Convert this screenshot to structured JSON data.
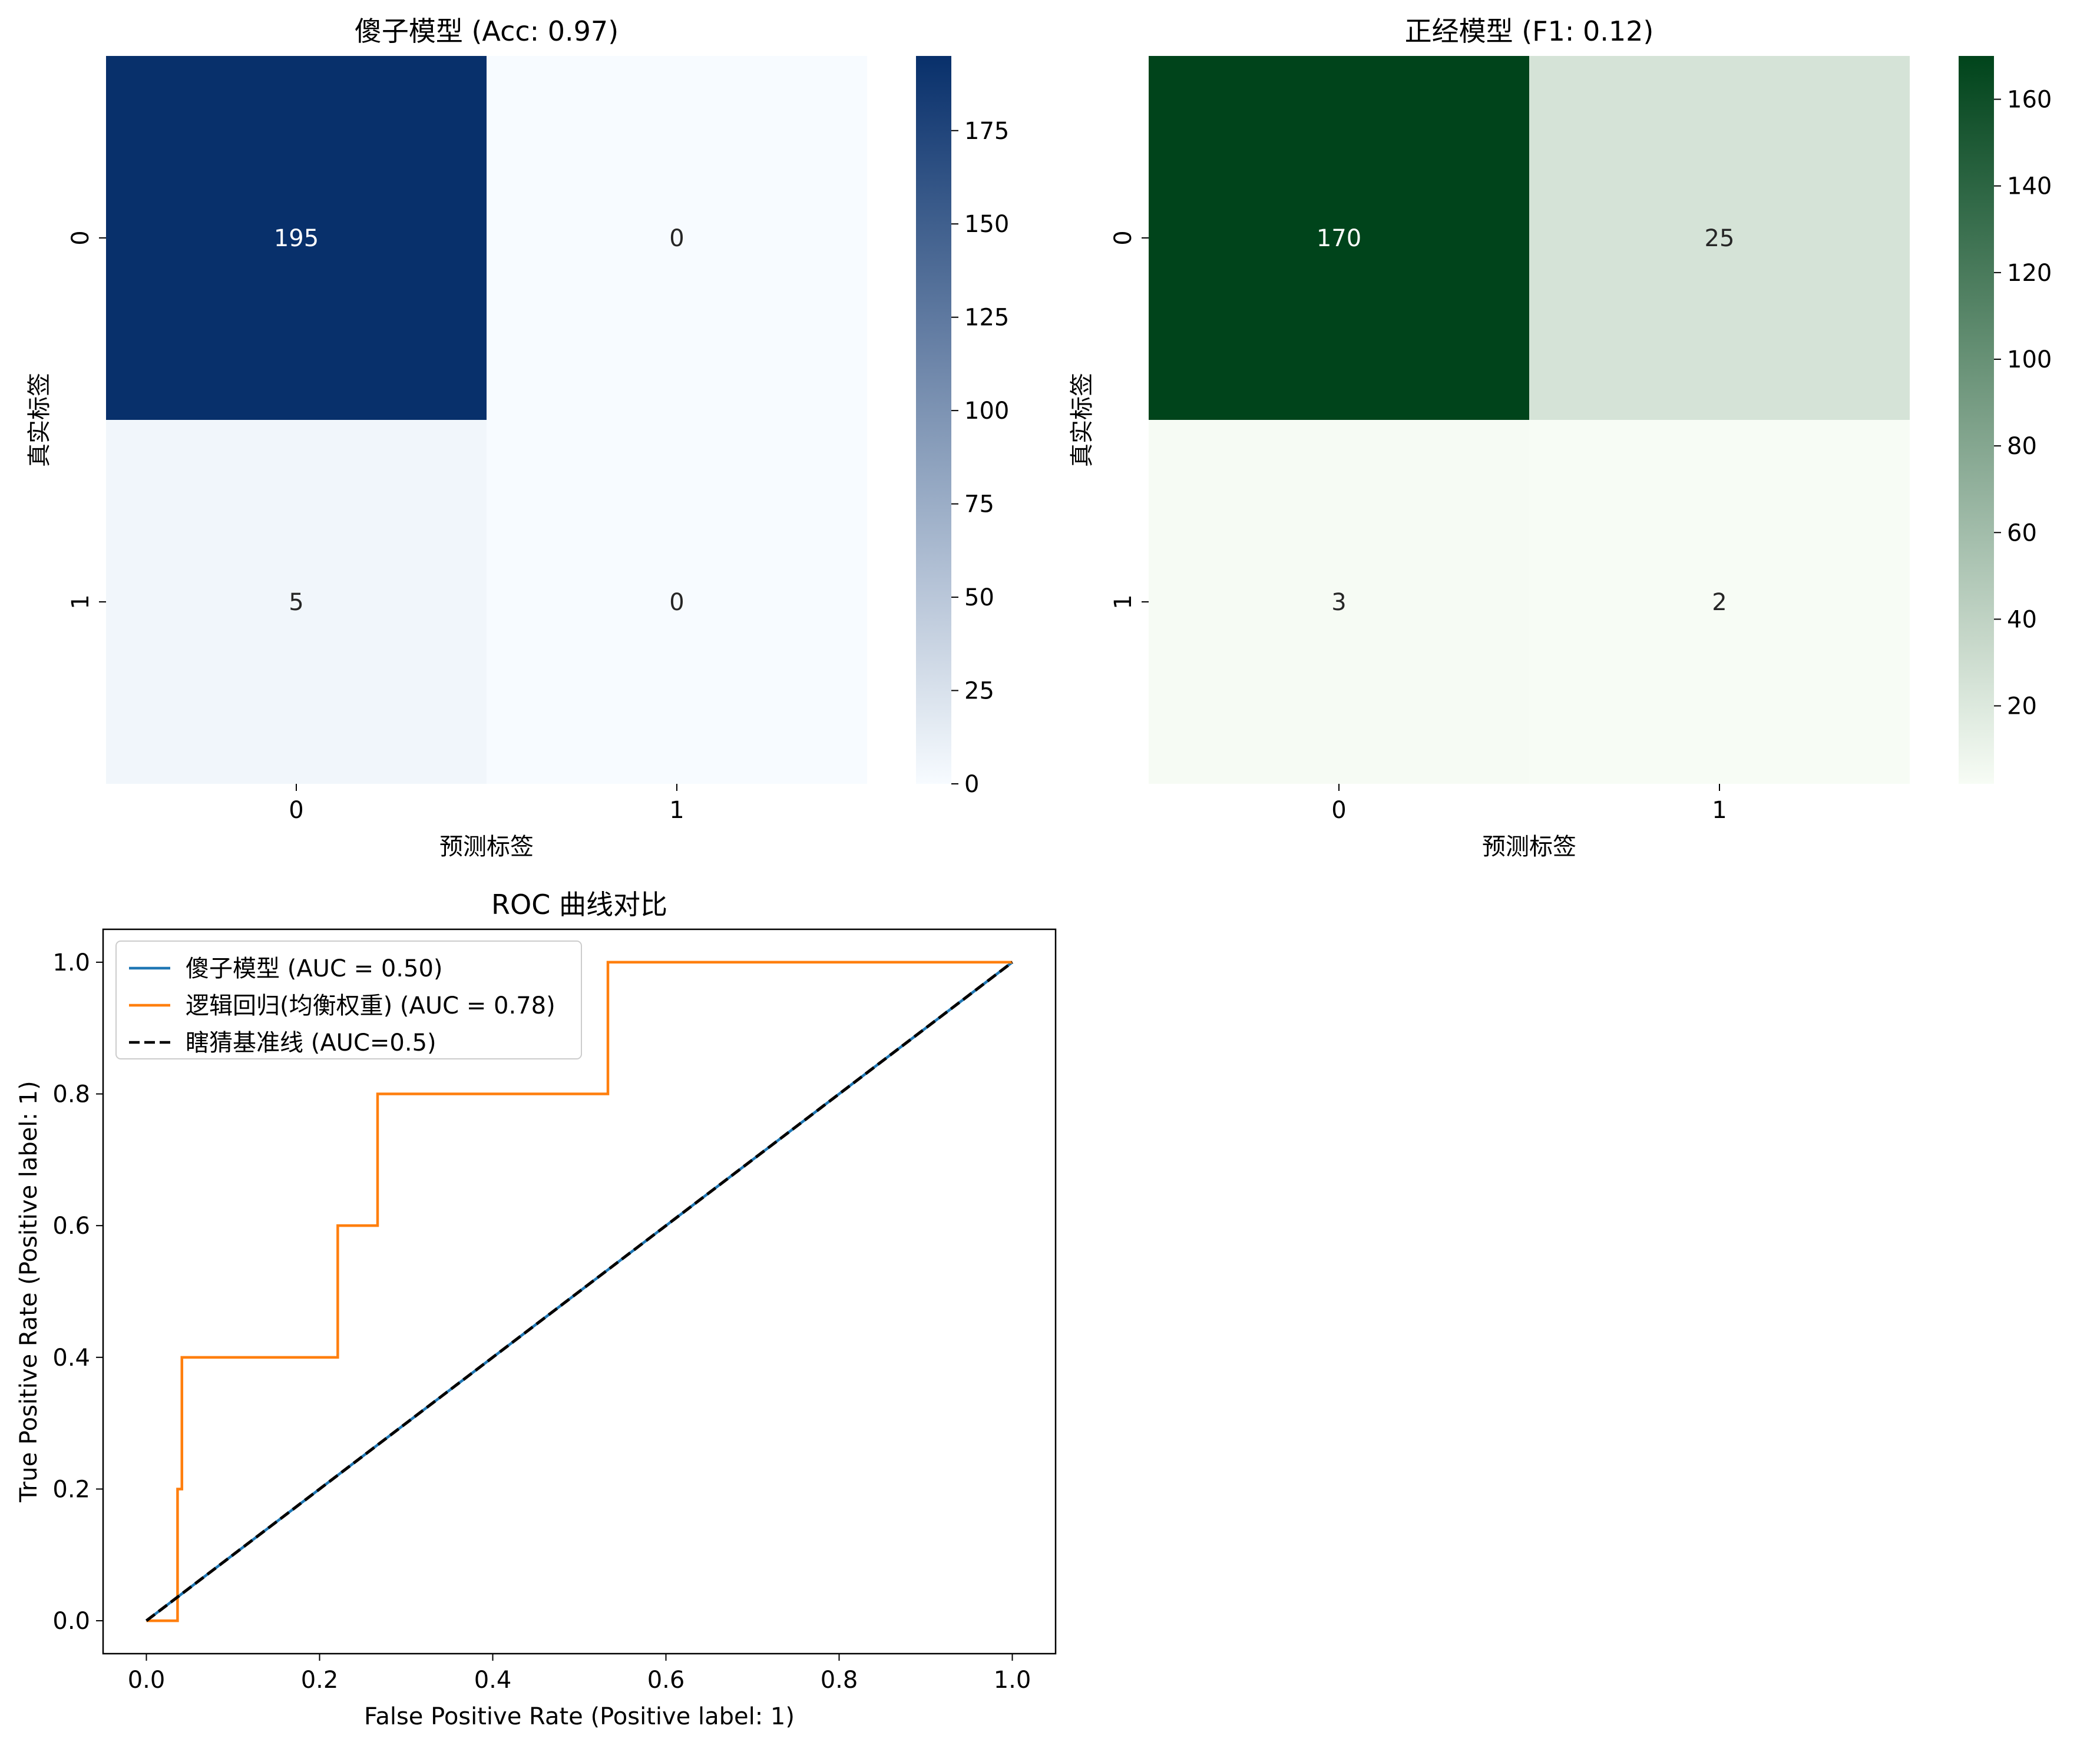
{
  "chart_data": [
    {
      "type": "heatmap",
      "title": "傻子模型 (Acc: 0.97)",
      "xlabel": "预测标签",
      "ylabel": "真实标签",
      "x_categories": [
        "0",
        "1"
      ],
      "y_categories": [
        "0",
        "1"
      ],
      "matrix": [
        [
          195,
          0
        ],
        [
          5,
          0
        ]
      ],
      "colormap": "Blues",
      "colors": {
        "low": "#f7fbff",
        "high": "#08306b"
      },
      "vmin": 0,
      "vmax": 195,
      "colorbar_ticks": [
        0,
        25,
        50,
        75,
        100,
        125,
        150,
        175
      ]
    },
    {
      "type": "heatmap",
      "title": "正经模型 (F1: 0.12)",
      "xlabel": "预测标签",
      "ylabel": "真实标签",
      "x_categories": [
        "0",
        "1"
      ],
      "y_categories": [
        "0",
        "1"
      ],
      "matrix": [
        [
          170,
          25
        ],
        [
          3,
          2
        ]
      ],
      "colormap": "Greens",
      "colors": {
        "low": "#f7fcf5",
        "high": "#00441b"
      },
      "vmin": 2,
      "vmax": 170,
      "colorbar_ticks": [
        20,
        40,
        60,
        80,
        100,
        120,
        140,
        160
      ]
    },
    {
      "type": "line",
      "title": "ROC 曲线对比",
      "xlabel": "False Positive Rate (Positive label: 1)",
      "ylabel": "True Positive Rate (Positive label: 1)",
      "xlim": [
        -0.05,
        1.05
      ],
      "ylim": [
        -0.05,
        1.05
      ],
      "xticks": [
        "0.0",
        "0.2",
        "0.4",
        "0.6",
        "0.8",
        "1.0"
      ],
      "yticks": [
        "0.0",
        "0.2",
        "0.4",
        "0.6",
        "0.8",
        "1.0"
      ],
      "legend_position": "upper-left",
      "series": [
        {
          "name": "傻子模型 (AUC = 0.50)",
          "color": "#1f77b4",
          "dash": "solid",
          "x": [
            0,
            1
          ],
          "y": [
            0,
            1
          ]
        },
        {
          "name": "逻辑回归(均衡权重) (AUC = 0.78)",
          "color": "#ff7f0e",
          "dash": "solid",
          "x": [
            0,
            0.036,
            0.036,
            0.041,
            0.041,
            0.221,
            0.221,
            0.267,
            0.267,
            0.533,
            0.533,
            1.0
          ],
          "y": [
            0,
            0,
            0.2,
            0.2,
            0.4,
            0.4,
            0.6,
            0.6,
            0.8,
            0.8,
            1.0,
            1.0
          ]
        },
        {
          "name": "瞎猜基准线 (AUC=0.5)",
          "color": "#000000",
          "dash": "dashed",
          "x": [
            0,
            1
          ],
          "y": [
            0,
            1
          ]
        }
      ]
    }
  ]
}
